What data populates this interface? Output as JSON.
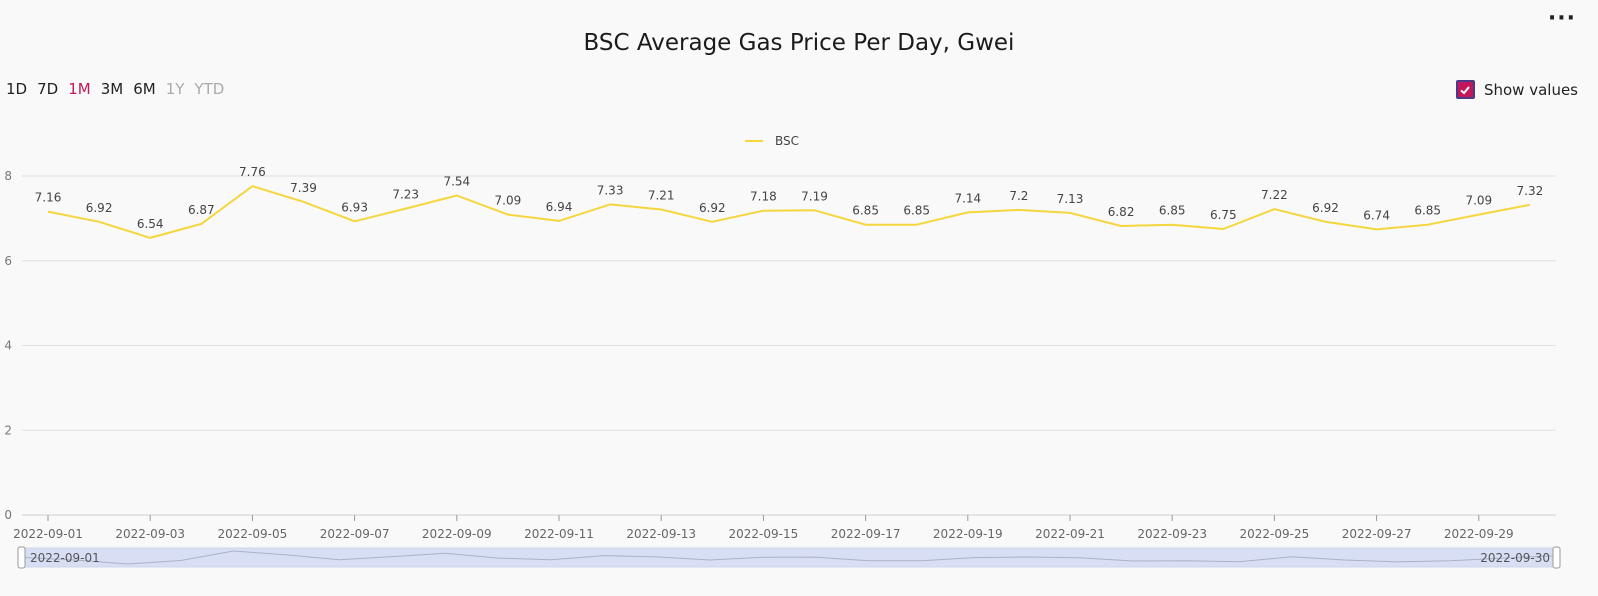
{
  "header": {
    "title": "BSC Average Gas Price Per Day, Gwei",
    "menu_label": "···"
  },
  "range_buttons": [
    {
      "label": "1D",
      "state": "normal"
    },
    {
      "label": "7D",
      "state": "normal"
    },
    {
      "label": "1M",
      "state": "active"
    },
    {
      "label": "3M",
      "state": "normal"
    },
    {
      "label": "6M",
      "state": "normal"
    },
    {
      "label": "1Y",
      "state": "disabled"
    },
    {
      "label": "YTD",
      "state": "disabled"
    }
  ],
  "show_values": {
    "label": "Show values",
    "checked": true
  },
  "colors": {
    "line": "#f5d63d",
    "accent": "#c2185b",
    "grid": "#e0e0e0",
    "slider_fill": "#d8dff5"
  },
  "chart_data": {
    "type": "line",
    "title": "BSC Average Gas Price Per Day, Gwei",
    "xlabel": "",
    "ylabel": "",
    "ylim": [
      0,
      8
    ],
    "yticks": [
      0,
      2,
      4,
      6,
      8
    ],
    "grid": true,
    "legend_position": "top-center",
    "x": [
      "2022-09-01",
      "2022-09-02",
      "2022-09-03",
      "2022-09-04",
      "2022-09-05",
      "2022-09-06",
      "2022-09-07",
      "2022-09-08",
      "2022-09-09",
      "2022-09-10",
      "2022-09-11",
      "2022-09-12",
      "2022-09-13",
      "2022-09-14",
      "2022-09-15",
      "2022-09-16",
      "2022-09-17",
      "2022-09-18",
      "2022-09-19",
      "2022-09-20",
      "2022-09-21",
      "2022-09-22",
      "2022-09-23",
      "2022-09-24",
      "2022-09-25",
      "2022-09-26",
      "2022-09-27",
      "2022-09-28",
      "2022-09-29",
      "2022-09-30"
    ],
    "x_tick_labels": [
      "2022-09-01",
      "2022-09-03",
      "2022-09-05",
      "2022-09-07",
      "2022-09-09",
      "2022-09-11",
      "2022-09-13",
      "2022-09-15",
      "2022-09-17",
      "2022-09-19",
      "2022-09-21",
      "2022-09-23",
      "2022-09-25",
      "2022-09-27",
      "2022-09-29"
    ],
    "series": [
      {
        "name": "BSC",
        "values": [
          "7.16",
          "6.92",
          "6.54",
          "6.87",
          "7.76",
          "7.39",
          "6.93",
          "7.23",
          "7.54",
          "7.09",
          "6.94",
          "7.33",
          "7.21",
          "6.92",
          "7.18",
          "7.19",
          "6.85",
          "6.85",
          "7.14",
          "7.2",
          "7.13",
          "6.82",
          "6.85",
          "6.75",
          "7.22",
          "6.92",
          "6.74",
          "6.85",
          "7.09",
          "7.32"
        ]
      }
    ],
    "slider": {
      "start_label": "2022-09-01",
      "end_label": "2022-09-30"
    }
  }
}
